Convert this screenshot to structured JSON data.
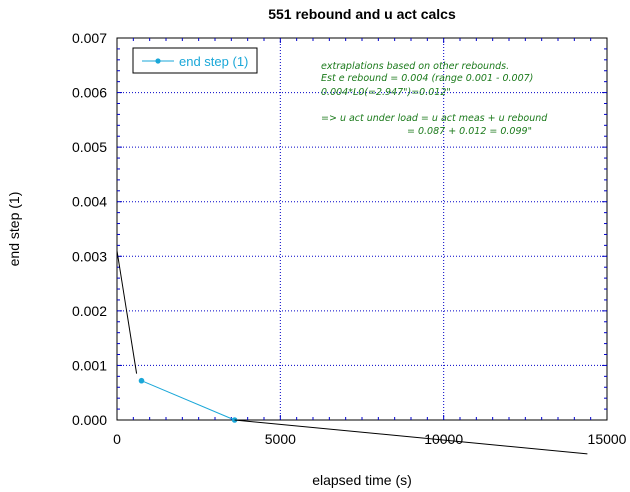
{
  "chart_data": {
    "type": "line",
    "title": "551 rebound and u act calcs",
    "xlabel": "elapsed time (s)",
    "ylabel": "end step (1)",
    "xlim": [
      0,
      15000
    ],
    "ylim": [
      0,
      0.007
    ],
    "x_ticks": [
      "0",
      "5000",
      "10000",
      "15000"
    ],
    "y_ticks": [
      "0.000",
      "0.001",
      "0.002",
      "0.003",
      "0.004",
      "0.005",
      "0.006",
      "0.007"
    ],
    "grid": true,
    "legend_position": "top-left",
    "series": [
      {
        "name": "end step (1)",
        "color": "#1aa7d8",
        "marker": "circle",
        "x": [
          750,
          3600
        ],
        "y": [
          0.00072,
          0.0
        ]
      }
    ],
    "extrapolation_lines": {
      "color": "#000000",
      "segments": [
        {
          "x": [
            0,
            600
          ],
          "y": [
            0.0031,
            0.00085
          ]
        },
        {
          "x": [
            3600,
            14400
          ],
          "y": [
            0.0,
            -0.00062
          ]
        }
      ]
    },
    "annotation_lines": [
      "extraplations based on other rebounds.",
      "Est e rebound = 0.004 (range 0.001 - 0.007)",
      "0.004*L0(=2.947\")=0.012\"",
      "",
      "=> u act under load = u act meas + u rebound",
      "= 0.087 + 0.012 = 0.099\""
    ],
    "annotation_color": "#1b7a1b"
  }
}
